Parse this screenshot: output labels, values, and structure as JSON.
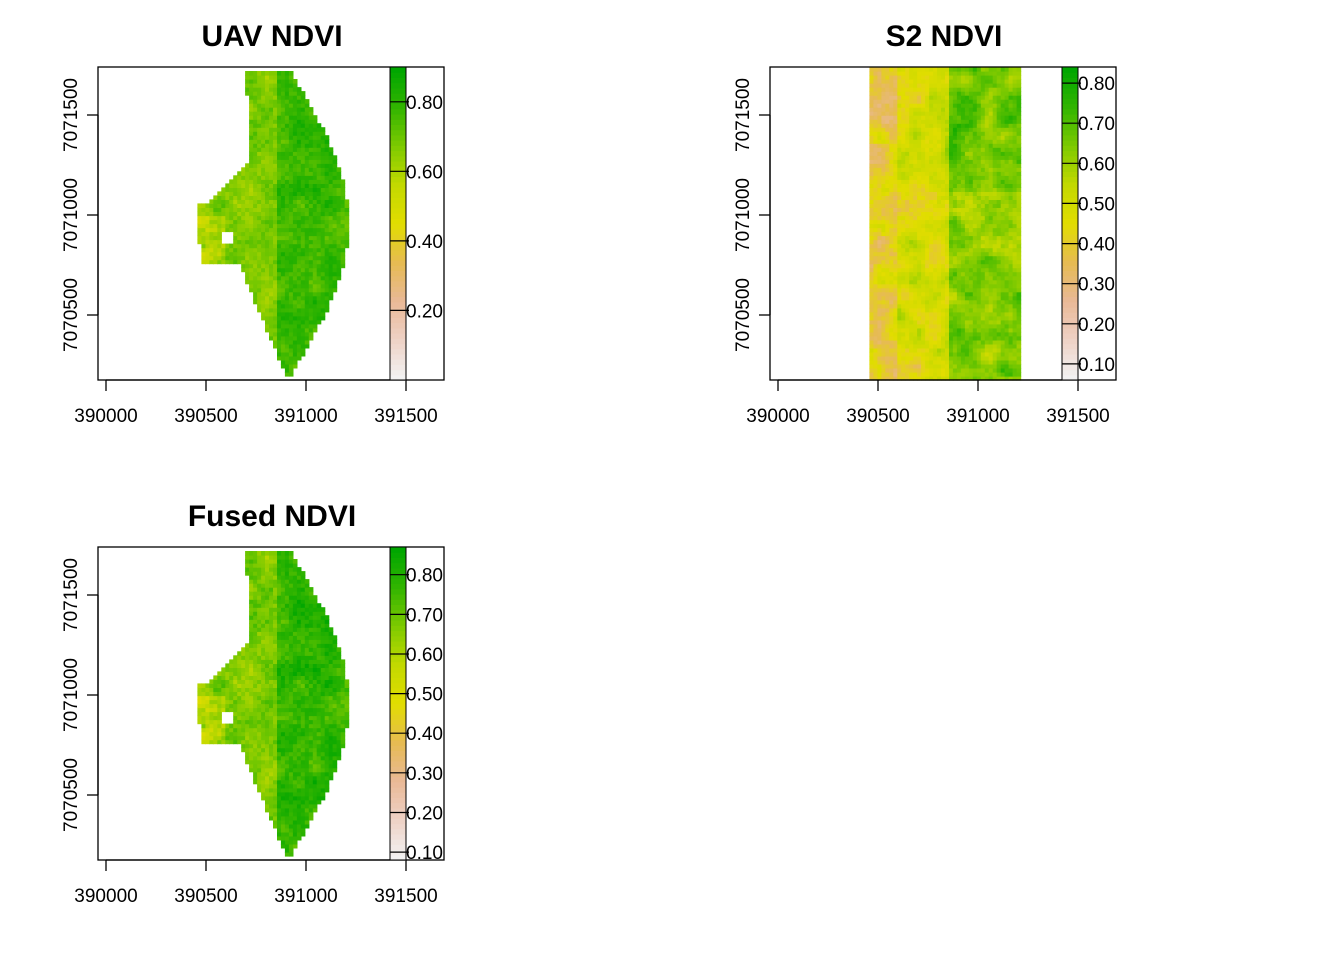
{
  "chart_data": [
    {
      "type": "heatmap",
      "title": "UAV NDVI",
      "dataset": "uav",
      "x_ticks": [
        "390000",
        "390500",
        "391000",
        "391500"
      ],
      "y_ticks": [
        "7070500",
        "7071000",
        "7071500"
      ],
      "xlim": [
        389960,
        391700
      ],
      "ylim": [
        7070180,
        7071740
      ],
      "legend": {
        "min": 0.0,
        "max": 0.9,
        "ticks": [
          "0.20",
          "0.40",
          "0.60",
          "0.80"
        ],
        "tick_values": [
          0.2,
          0.4,
          0.6,
          0.8
        ]
      }
    },
    {
      "type": "heatmap",
      "title": "S2 NDVI",
      "dataset": "s2",
      "x_ticks": [
        "390000",
        "390500",
        "391000",
        "391500"
      ],
      "y_ticks": [
        "7070500",
        "7071000",
        "7071500"
      ],
      "xlim": [
        389960,
        391700
      ],
      "ylim": [
        7070180,
        7071740
      ],
      "legend": {
        "min": 0.06,
        "max": 0.84,
        "ticks": [
          "0.10",
          "0.20",
          "0.30",
          "0.40",
          "0.50",
          "0.60",
          "0.70",
          "0.80"
        ],
        "tick_values": [
          0.1,
          0.2,
          0.3,
          0.4,
          0.5,
          0.6,
          0.7,
          0.8
        ]
      }
    },
    {
      "type": "heatmap",
      "title": "Fused NDVI",
      "dataset": "uav",
      "x_ticks": [
        "390000",
        "390500",
        "391000",
        "391500"
      ],
      "y_ticks": [
        "7070500",
        "7071000",
        "7071500"
      ],
      "xlim": [
        389960,
        391700
      ],
      "ylim": [
        7070180,
        7071740
      ],
      "legend": {
        "min": 0.08,
        "max": 0.87,
        "ticks": [
          "0.10",
          "0.20",
          "0.30",
          "0.40",
          "0.50",
          "0.60",
          "0.70",
          "0.80"
        ],
        "tick_values": [
          0.1,
          0.2,
          0.3,
          0.4,
          0.5,
          0.6,
          0.7,
          0.8
        ]
      }
    }
  ],
  "colors": {
    "ramp": [
      "#f2f2f2",
      "#eed1c5",
      "#e9b996",
      "#e6bb52",
      "#e2dd00",
      "#c3d900",
      "#7fca00",
      "#33b500",
      "#00a600"
    ],
    "axis": "#000000",
    "background": "#ffffff"
  }
}
